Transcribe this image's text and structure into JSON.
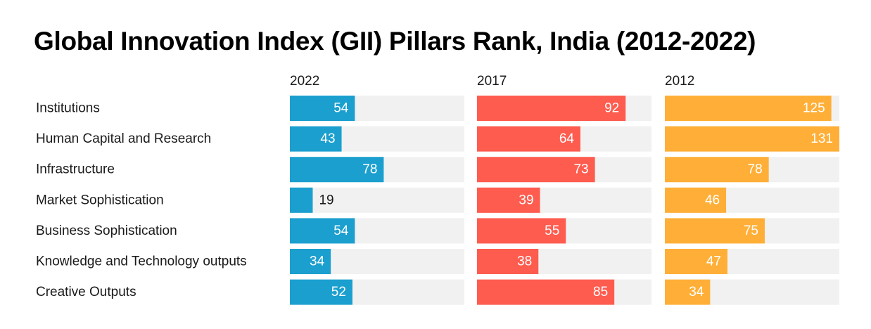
{
  "chart_data": {
    "type": "bar",
    "title": "Global Innovation Index (GII) Pillars Rank, India (2012-2022)",
    "categories": [
      "Institutions",
      "Human Capital and Research",
      "Infrastructure",
      "Market Sophistication",
      "Business Sophistication",
      "Knowledge and Technology outputs",
      "Creative Outputs"
    ],
    "series": [
      {
        "name": "2022",
        "color": "#1b9fcf",
        "xlim": [
          0,
          145
        ],
        "values": [
          54,
          43,
          78,
          19,
          54,
          34,
          52
        ]
      },
      {
        "name": "2017",
        "color": "#fe5c4f",
        "xlim": [
          0,
          108
        ],
        "values": [
          92,
          64,
          73,
          39,
          55,
          38,
          85
        ]
      },
      {
        "name": "2012",
        "color": "#ffaf37",
        "xlim": [
          0,
          131
        ],
        "values": [
          125,
          131,
          78,
          46,
          75,
          47,
          34
        ]
      }
    ],
    "background_color": "#f1f1f1",
    "label_inside_color": "#ffffff",
    "label_outside_color": "#1a1a1a",
    "label_position": "inside-end, outside when bar is too short",
    "orientation": "horizontal",
    "grid": false,
    "legend": "none"
  }
}
